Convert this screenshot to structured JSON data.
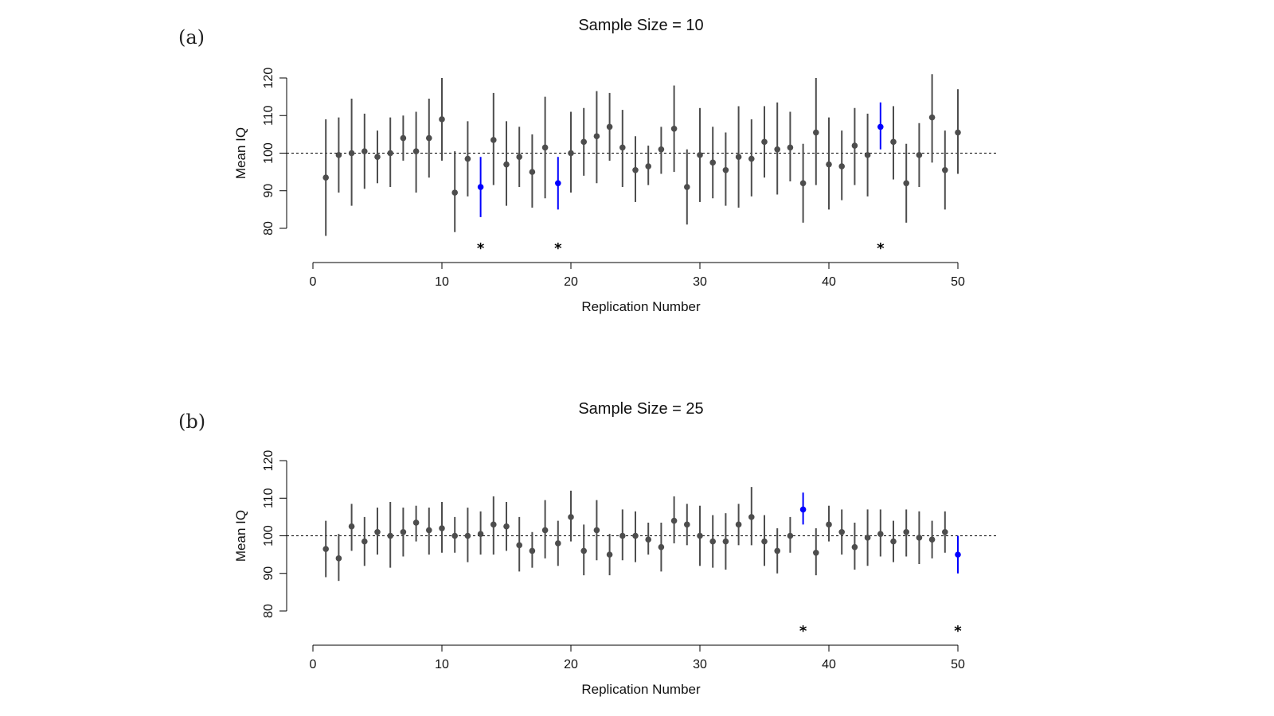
{
  "colors": {
    "normal": "#4d4d4d",
    "highlight": "#0000ff",
    "axis": "#000000",
    "reference": "#000000"
  },
  "chart_data": [
    {
      "type": "scatter",
      "panel_label": "(a)",
      "title": "Sample Size = 10",
      "xlabel": "Replication Number",
      "ylabel": "Mean IQ",
      "xlim": [
        0,
        50
      ],
      "ylim": [
        80,
        120
      ],
      "xticks": [
        0,
        10,
        20,
        30,
        40,
        50
      ],
      "yticks": [
        80,
        90,
        100,
        110,
        120
      ],
      "reference_line": 100,
      "grid": false,
      "legend": "none",
      "marker_symbol": "*",
      "points": [
        {
          "x": 1,
          "y": 93.5,
          "lo": 78,
          "hi": 109,
          "flag": false
        },
        {
          "x": 2,
          "y": 99.5,
          "lo": 89.5,
          "hi": 109.5,
          "flag": false
        },
        {
          "x": 3,
          "y": 100,
          "lo": 86,
          "hi": 114.5,
          "flag": false
        },
        {
          "x": 4,
          "y": 100.5,
          "lo": 90.5,
          "hi": 110.5,
          "flag": false
        },
        {
          "x": 5,
          "y": 99,
          "lo": 92,
          "hi": 106,
          "flag": false
        },
        {
          "x": 6,
          "y": 100,
          "lo": 91,
          "hi": 109.5,
          "flag": false
        },
        {
          "x": 7,
          "y": 104,
          "lo": 98,
          "hi": 110,
          "flag": false
        },
        {
          "x": 8,
          "y": 100.5,
          "lo": 89.5,
          "hi": 111,
          "flag": false
        },
        {
          "x": 9,
          "y": 104,
          "lo": 93.5,
          "hi": 114.5,
          "flag": false
        },
        {
          "x": 10,
          "y": 109,
          "lo": 98,
          "hi": 120,
          "flag": false
        },
        {
          "x": 11,
          "y": 89.5,
          "lo": 79,
          "hi": 100.5,
          "flag": false
        },
        {
          "x": 12,
          "y": 98.5,
          "lo": 88.5,
          "hi": 108.5,
          "flag": false
        },
        {
          "x": 13,
          "y": 91,
          "lo": 83,
          "hi": 99,
          "flag": true
        },
        {
          "x": 14,
          "y": 103.5,
          "lo": 91.5,
          "hi": 116,
          "flag": false
        },
        {
          "x": 15,
          "y": 97,
          "lo": 86,
          "hi": 108.5,
          "flag": false
        },
        {
          "x": 16,
          "y": 99,
          "lo": 91,
          "hi": 107,
          "flag": false
        },
        {
          "x": 17,
          "y": 95,
          "lo": 85.5,
          "hi": 105,
          "flag": false
        },
        {
          "x": 18,
          "y": 101.5,
          "lo": 88,
          "hi": 115,
          "flag": false
        },
        {
          "x": 19,
          "y": 92,
          "lo": 85,
          "hi": 99,
          "flag": true
        },
        {
          "x": 20,
          "y": 100,
          "lo": 89.5,
          "hi": 111,
          "flag": false
        },
        {
          "x": 21,
          "y": 103,
          "lo": 94,
          "hi": 112,
          "flag": false
        },
        {
          "x": 22,
          "y": 104.5,
          "lo": 92,
          "hi": 116.5,
          "flag": false
        },
        {
          "x": 23,
          "y": 107,
          "lo": 98,
          "hi": 116,
          "flag": false
        },
        {
          "x": 24,
          "y": 101.5,
          "lo": 91,
          "hi": 111.5,
          "flag": false
        },
        {
          "x": 25,
          "y": 95.5,
          "lo": 87,
          "hi": 104.5,
          "flag": false
        },
        {
          "x": 26,
          "y": 96.5,
          "lo": 91.5,
          "hi": 102,
          "flag": false
        },
        {
          "x": 27,
          "y": 101,
          "lo": 94.5,
          "hi": 107,
          "flag": false
        },
        {
          "x": 28,
          "y": 106.5,
          "lo": 95,
          "hi": 118,
          "flag": false
        },
        {
          "x": 29,
          "y": 91,
          "lo": 81,
          "hi": 101,
          "flag": false
        },
        {
          "x": 30,
          "y": 99.5,
          "lo": 87,
          "hi": 112,
          "flag": false
        },
        {
          "x": 31,
          "y": 97.5,
          "lo": 88,
          "hi": 107,
          "flag": false
        },
        {
          "x": 32,
          "y": 95.5,
          "lo": 86,
          "hi": 105.5,
          "flag": false
        },
        {
          "x": 33,
          "y": 99,
          "lo": 85.5,
          "hi": 112.5,
          "flag": false
        },
        {
          "x": 34,
          "y": 98.5,
          "lo": 88.5,
          "hi": 109,
          "flag": false
        },
        {
          "x": 35,
          "y": 103,
          "lo": 93.5,
          "hi": 112.5,
          "flag": false
        },
        {
          "x": 36,
          "y": 101,
          "lo": 89,
          "hi": 113.5,
          "flag": false
        },
        {
          "x": 37,
          "y": 101.5,
          "lo": 92.5,
          "hi": 111,
          "flag": false
        },
        {
          "x": 38,
          "y": 92,
          "lo": 81.5,
          "hi": 102.5,
          "flag": false
        },
        {
          "x": 39,
          "y": 105.5,
          "lo": 91.5,
          "hi": 120,
          "flag": false
        },
        {
          "x": 40,
          "y": 97,
          "lo": 85,
          "hi": 109.5,
          "flag": false
        },
        {
          "x": 41,
          "y": 96.5,
          "lo": 87.5,
          "hi": 106,
          "flag": false
        },
        {
          "x": 42,
          "y": 102,
          "lo": 91.5,
          "hi": 112,
          "flag": false
        },
        {
          "x": 43,
          "y": 99.5,
          "lo": 88.5,
          "hi": 110.5,
          "flag": false
        },
        {
          "x": 44,
          "y": 107,
          "lo": 101,
          "hi": 113.5,
          "flag": true
        },
        {
          "x": 45,
          "y": 103,
          "lo": 93,
          "hi": 112.5,
          "flag": false
        },
        {
          "x": 46,
          "y": 92,
          "lo": 81.5,
          "hi": 102.5,
          "flag": false
        },
        {
          "x": 47,
          "y": 99.5,
          "lo": 91,
          "hi": 108,
          "flag": false
        },
        {
          "x": 48,
          "y": 109.5,
          "lo": 97.5,
          "hi": 121,
          "flag": false
        },
        {
          "x": 49,
          "y": 95.5,
          "lo": 85,
          "hi": 106,
          "flag": false
        },
        {
          "x": 50,
          "y": 105.5,
          "lo": 94.5,
          "hi": 117,
          "flag": false
        }
      ]
    },
    {
      "type": "scatter",
      "panel_label": "(b)",
      "title": "Sample Size = 25",
      "xlabel": "Replication Number",
      "ylabel": "Mean IQ",
      "xlim": [
        0,
        50
      ],
      "ylim": [
        80,
        120
      ],
      "xticks": [
        0,
        10,
        20,
        30,
        40,
        50
      ],
      "yticks": [
        80,
        90,
        100,
        110,
        120
      ],
      "reference_line": 100,
      "grid": false,
      "legend": "none",
      "marker_symbol": "*",
      "points": [
        {
          "x": 1,
          "y": 96.5,
          "lo": 89,
          "hi": 104,
          "flag": false
        },
        {
          "x": 2,
          "y": 94,
          "lo": 88,
          "hi": 100.5,
          "flag": false
        },
        {
          "x": 3,
          "y": 102.5,
          "lo": 96,
          "hi": 108.5,
          "flag": false
        },
        {
          "x": 4,
          "y": 98.5,
          "lo": 92,
          "hi": 105,
          "flag": false
        },
        {
          "x": 5,
          "y": 101,
          "lo": 95,
          "hi": 107.5,
          "flag": false
        },
        {
          "x": 6,
          "y": 100,
          "lo": 91.5,
          "hi": 109,
          "flag": false
        },
        {
          "x": 7,
          "y": 101,
          "lo": 94.5,
          "hi": 107.5,
          "flag": false
        },
        {
          "x": 8,
          "y": 103.5,
          "lo": 98.5,
          "hi": 108,
          "flag": false
        },
        {
          "x": 9,
          "y": 101.5,
          "lo": 95,
          "hi": 107.5,
          "flag": false
        },
        {
          "x": 10,
          "y": 102,
          "lo": 95.5,
          "hi": 109,
          "flag": false
        },
        {
          "x": 11,
          "y": 100,
          "lo": 95.5,
          "hi": 105,
          "flag": false
        },
        {
          "x": 12,
          "y": 100,
          "lo": 93,
          "hi": 107.5,
          "flag": false
        },
        {
          "x": 13,
          "y": 100.5,
          "lo": 95,
          "hi": 106.5,
          "flag": false
        },
        {
          "x": 14,
          "y": 103,
          "lo": 95,
          "hi": 110.5,
          "flag": false
        },
        {
          "x": 15,
          "y": 102.5,
          "lo": 96,
          "hi": 109,
          "flag": false
        },
        {
          "x": 16,
          "y": 97.5,
          "lo": 90.5,
          "hi": 105,
          "flag": false
        },
        {
          "x": 17,
          "y": 96,
          "lo": 91.5,
          "hi": 101,
          "flag": false
        },
        {
          "x": 18,
          "y": 101.5,
          "lo": 94,
          "hi": 109.5,
          "flag": false
        },
        {
          "x": 19,
          "y": 98,
          "lo": 92,
          "hi": 104,
          "flag": false
        },
        {
          "x": 20,
          "y": 105,
          "lo": 98.5,
          "hi": 112,
          "flag": false
        },
        {
          "x": 21,
          "y": 96,
          "lo": 89.5,
          "hi": 103,
          "flag": false
        },
        {
          "x": 22,
          "y": 101.5,
          "lo": 93.5,
          "hi": 109.5,
          "flag": false
        },
        {
          "x": 23,
          "y": 95,
          "lo": 89.5,
          "hi": 100.5,
          "flag": false
        },
        {
          "x": 24,
          "y": 100,
          "lo": 93.5,
          "hi": 107,
          "flag": false
        },
        {
          "x": 25,
          "y": 100,
          "lo": 93,
          "hi": 106.5,
          "flag": false
        },
        {
          "x": 26,
          "y": 99,
          "lo": 95,
          "hi": 103.5,
          "flag": false
        },
        {
          "x": 27,
          "y": 97,
          "lo": 90.5,
          "hi": 103.5,
          "flag": false
        },
        {
          "x": 28,
          "y": 104,
          "lo": 98,
          "hi": 110.5,
          "flag": false
        },
        {
          "x": 29,
          "y": 103,
          "lo": 97.5,
          "hi": 108.5,
          "flag": false
        },
        {
          "x": 30,
          "y": 100,
          "lo": 92,
          "hi": 108,
          "flag": false
        },
        {
          "x": 31,
          "y": 98.5,
          "lo": 91.5,
          "hi": 105.5,
          "flag": false
        },
        {
          "x": 32,
          "y": 98.5,
          "lo": 91,
          "hi": 106,
          "flag": false
        },
        {
          "x": 33,
          "y": 103,
          "lo": 97.5,
          "hi": 108.5,
          "flag": false
        },
        {
          "x": 34,
          "y": 105,
          "lo": 97.5,
          "hi": 113,
          "flag": false
        },
        {
          "x": 35,
          "y": 98.5,
          "lo": 92,
          "hi": 105.5,
          "flag": false
        },
        {
          "x": 36,
          "y": 96,
          "lo": 90,
          "hi": 102,
          "flag": false
        },
        {
          "x": 37,
          "y": 100,
          "lo": 95.5,
          "hi": 105,
          "flag": false
        },
        {
          "x": 38,
          "y": 107,
          "lo": 103,
          "hi": 111.5,
          "flag": true
        },
        {
          "x": 39,
          "y": 95.5,
          "lo": 89.5,
          "hi": 102,
          "flag": false
        },
        {
          "x": 40,
          "y": 103,
          "lo": 98.5,
          "hi": 108,
          "flag": false
        },
        {
          "x": 41,
          "y": 101,
          "lo": 95,
          "hi": 107,
          "flag": false
        },
        {
          "x": 42,
          "y": 97,
          "lo": 91,
          "hi": 103.5,
          "flag": false
        },
        {
          "x": 43,
          "y": 99.5,
          "lo": 92,
          "hi": 107,
          "flag": false
        },
        {
          "x": 44,
          "y": 100.5,
          "lo": 94.5,
          "hi": 107,
          "flag": false
        },
        {
          "x": 45,
          "y": 98.5,
          "lo": 93,
          "hi": 104,
          "flag": false
        },
        {
          "x": 46,
          "y": 101,
          "lo": 94.5,
          "hi": 107,
          "flag": false
        },
        {
          "x": 47,
          "y": 99.5,
          "lo": 92.5,
          "hi": 106.5,
          "flag": false
        },
        {
          "x": 48,
          "y": 99,
          "lo": 94,
          "hi": 104,
          "flag": false
        },
        {
          "x": 49,
          "y": 101,
          "lo": 95.5,
          "hi": 106.5,
          "flag": false
        },
        {
          "x": 50,
          "y": 95,
          "lo": 90,
          "hi": 100,
          "flag": true
        }
      ]
    }
  ]
}
